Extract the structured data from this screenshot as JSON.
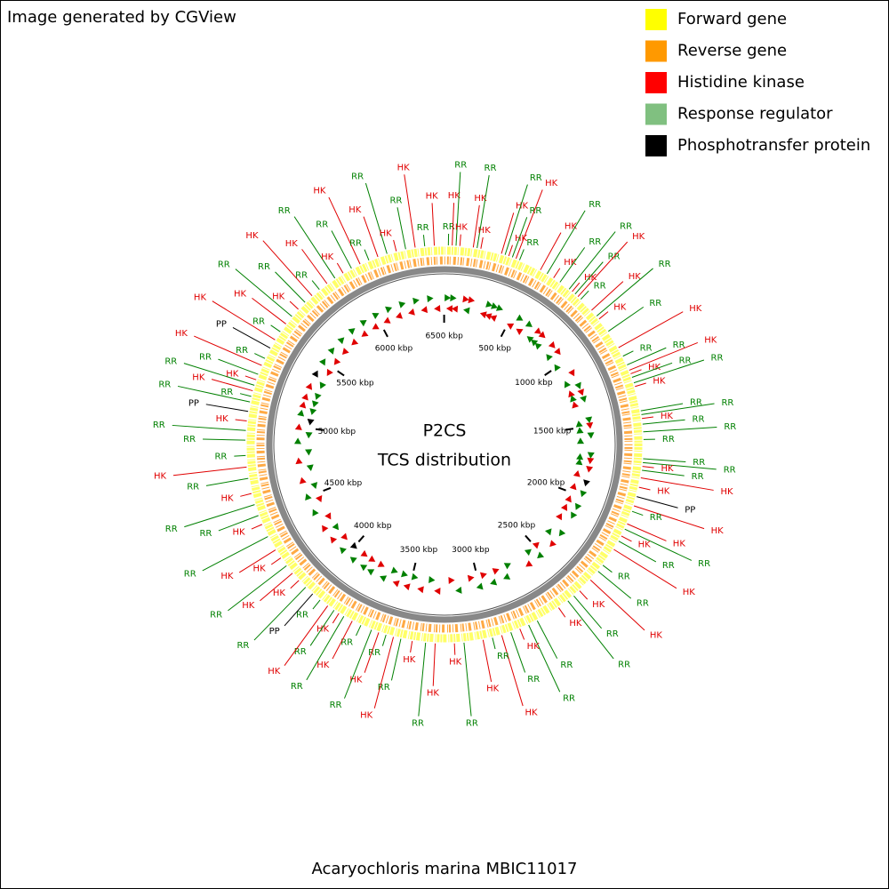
{
  "header": {
    "title": "Image generated by CGView"
  },
  "legend": [
    {
      "label": "Forward gene",
      "color": "#ffff00"
    },
    {
      "label": "Reverse gene",
      "color": "#ff9900"
    },
    {
      "label": "Histidine kinase",
      "color": "#ff0000"
    },
    {
      "label": "Response regulator",
      "color": "#80c080"
    },
    {
      "label": "Phosphotransfer protein",
      "color": "#000000"
    }
  ],
  "center": {
    "line1": "P2CS",
    "line2": "TCS distribution"
  },
  "footer": {
    "organism": "Acaryochloris marina MBIC11017"
  },
  "map": {
    "xlim": [
      0,
      6503
    ],
    "xticks": [
      {
        "value": 500,
        "label": "500 kbp"
      },
      {
        "value": 1000,
        "label": "1000 kbp"
      },
      {
        "value": 1500,
        "label": "1500 kbp"
      },
      {
        "value": 2000,
        "label": "2000 kbp"
      },
      {
        "value": 2500,
        "label": "2500 kbp"
      },
      {
        "value": 3000,
        "label": "3000 kbp"
      },
      {
        "value": 3500,
        "label": "3500 kbp"
      },
      {
        "value": 4000,
        "label": "4000 kbp"
      },
      {
        "value": 4500,
        "label": "4500 kbp"
      },
      {
        "value": 5000,
        "label": "5000 kbp"
      },
      {
        "value": 5500,
        "label": "5500 kbp"
      },
      {
        "value": 6000,
        "label": "6000 kbp"
      },
      {
        "value": 6500,
        "label": "6500 kbp"
      }
    ],
    "label_colors": {
      "HK": "#e00000",
      "RR": "#008000",
      "PP": "#000000"
    },
    "features": {
      "labels": [
        "RR",
        "HK",
        "RR",
        "HK",
        "HK",
        "RR",
        "HK",
        "HK",
        "RR",
        "HK",
        "RR",
        "HK",
        "RR",
        "HK",
        "RR",
        "HK",
        "RR",
        "RR",
        "HK",
        "RR",
        "HK",
        "RR",
        "HK",
        "RR",
        "HK",
        "RR",
        "HK",
        "RR",
        "RR",
        "HK",
        "HK",
        "RR",
        "RR",
        "HK",
        "RR",
        "RR",
        "HK",
        "RR",
        "RR",
        "RR",
        "RR",
        "RR",
        "HK",
        "RR",
        "HK",
        "HK",
        "PP",
        "HK",
        "RR",
        "HK",
        "RR",
        "HK",
        "RR",
        "HK",
        "RR",
        "RR",
        "HK",
        "HK",
        "RR",
        "RR",
        "HK",
        "RR",
        "RR",
        "HK",
        "RR",
        "HK",
        "RR",
        "HK",
        "RR",
        "HK",
        "HK",
        "RR",
        "HK",
        "RR",
        "HK",
        "RR",
        "HK",
        "RR",
        "RR",
        "HK",
        "RR",
        "HK",
        "RR",
        "HK",
        "RR",
        "PP",
        "RR",
        "HK",
        "HK",
        "RR",
        "HK",
        "HK",
        "RR",
        "HK",
        "RR",
        "RR",
        "HK",
        "RR",
        "HK",
        "RR",
        "RR",
        "RR",
        "HK",
        "PP",
        "RR",
        "RR",
        "HK",
        "RR",
        "HK",
        "RR",
        "HK",
        "RR",
        "PP",
        "HK",
        "RR",
        "HK",
        "RR",
        "HK",
        "RR",
        "HK",
        "RR",
        "HK",
        "RR",
        "HK",
        "RR",
        "HK",
        "RR",
        "HK",
        "RR",
        "HK",
        "RR",
        "HK",
        "RR",
        "HK"
      ],
      "positions": [
        20,
        40,
        60,
        80,
        150,
        170,
        190,
        300,
        320,
        340,
        360,
        380,
        400,
        520,
        560,
        600,
        640,
        700,
        720,
        740,
        760,
        780,
        860,
        900,
        920,
        1000,
        1100,
        1150,
        1200,
        1230,
        1250,
        1270,
        1300,
        1320,
        1450,
        1470,
        1490,
        1520,
        1560,
        1600,
        1700,
        1720,
        1740,
        1760,
        1800,
        1850,
        1900,
        1950,
        1980,
        2050,
        2080,
        2120,
        2150,
        2200,
        2300,
        2340,
        2400,
        2480,
        2520,
        2560,
        2620,
        2750,
        2800,
        2850,
        2900,
        2950,
        3000,
        3050,
        3150,
        3200,
        3300,
        3350,
        3420,
        3480,
        3520,
        3560,
        3600,
        3640,
        3700,
        3750,
        3800,
        3830,
        3860,
        3900,
        3950,
        4000,
        4050,
        4100,
        4150,
        4200,
        4250,
        4300,
        4380,
        4450,
        4500,
        4560,
        4620,
        4700,
        4760,
        4820,
        4900,
        4950,
        5000,
        5050,
        5100,
        5130,
        5160,
        5190,
        5220,
        5250,
        5300,
        5340,
        5400,
        5450,
        5500,
        5550,
        5600,
        5650,
        5700,
        5750,
        5800,
        5850,
        5900,
        5950,
        6000,
        6050,
        6100,
        6150,
        6200,
        6250,
        6300,
        6350,
        6400,
        6450
      ]
    }
  }
}
